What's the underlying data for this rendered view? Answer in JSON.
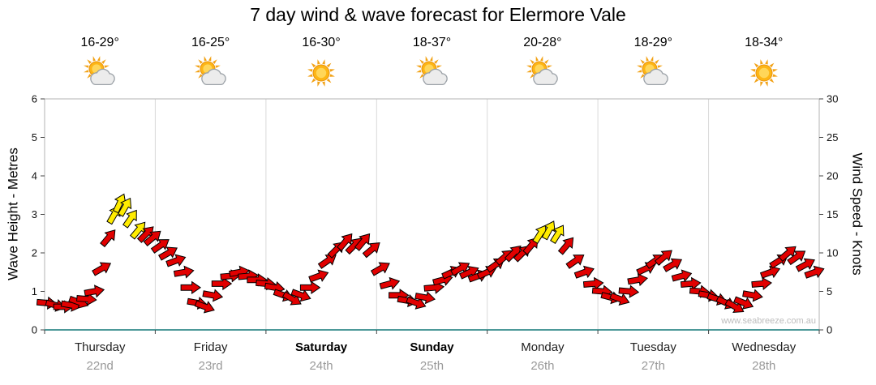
{
  "title": "7 day wind & wave forecast for Elermore Vale",
  "watermark": "www.seabreeze.com.au",
  "days": [
    {
      "name": "Thursday",
      "date": "22nd",
      "temp": "16-29°",
      "icon": "sun-cloud",
      "weekend": false
    },
    {
      "name": "Friday",
      "date": "23rd",
      "temp": "16-25°",
      "icon": "sun-cloud",
      "weekend": false
    },
    {
      "name": "Saturday",
      "date": "24th",
      "temp": "16-30°",
      "icon": "sun",
      "weekend": true
    },
    {
      "name": "Sunday",
      "date": "25th",
      "temp": "18-37°",
      "icon": "sun-cloud",
      "weekend": true
    },
    {
      "name": "Monday",
      "date": "26th",
      "temp": "20-28°",
      "icon": "sun-cloud",
      "weekend": false
    },
    {
      "name": "Tuesday",
      "date": "27th",
      "temp": "18-29°",
      "icon": "sun-cloud",
      "weekend": false
    },
    {
      "name": "Wednesday",
      "date": "28th",
      "temp": "18-34°",
      "icon": "sun",
      "weekend": false
    }
  ],
  "chart_data": {
    "type": "wind-arrow-time-series",
    "title": "7 day wind & wave forecast for Elermore Vale",
    "left_axis": {
      "label": "Wave Height - Metres",
      "min": 0,
      "max": 6,
      "ticks": [
        0,
        1,
        2,
        3,
        4,
        5,
        6
      ]
    },
    "right_axis": {
      "label": "Wind Speed - Knots",
      "min": 0,
      "max": 30,
      "ticks": [
        0,
        5,
        10,
        15,
        20,
        25,
        30
      ]
    },
    "x_axis": {
      "categories": [
        "Thursday",
        "Friday",
        "Saturday",
        "Sunday",
        "Monday",
        "Tuesday",
        "Wednesday"
      ],
      "span_days": 7
    },
    "legend": "arrows show wind speed (knots) and direction; yellow = strongest wind",
    "colors": {
      "arrow": "#e10000",
      "arrow_strong": "#ffec00",
      "outline": "#000000",
      "grid": "#d9d9d9",
      "border": "#b3b3b3",
      "baseline": "#4d9999"
    },
    "points_format": [
      "day_offset",
      "wind_knots",
      "direction_deg",
      "strong"
    ],
    "points": [
      [
        0.02,
        3.5,
        95,
        0
      ],
      [
        0.1,
        3.2,
        105,
        0
      ],
      [
        0.17,
        3.0,
        90,
        0
      ],
      [
        0.24,
        3.2,
        100,
        0
      ],
      [
        0.31,
        3.6,
        110,
        0
      ],
      [
        0.38,
        4.0,
        95,
        0
      ],
      [
        0.45,
        5.0,
        80,
        0
      ],
      [
        0.52,
        8.0,
        60,
        0
      ],
      [
        0.58,
        12.0,
        40,
        0
      ],
      [
        0.63,
        15.0,
        30,
        1
      ],
      [
        0.68,
        16.5,
        25,
        1
      ],
      [
        0.73,
        16.0,
        30,
        1
      ],
      [
        0.78,
        14.5,
        35,
        1
      ],
      [
        0.85,
        13.0,
        40,
        1
      ],
      [
        0.92,
        12.5,
        45,
        0
      ],
      [
        0.98,
        12.0,
        50,
        0
      ],
      [
        1.05,
        11.0,
        55,
        0
      ],
      [
        1.12,
        10.0,
        60,
        0
      ],
      [
        1.19,
        9.0,
        70,
        0
      ],
      [
        1.26,
        7.5,
        80,
        0
      ],
      [
        1.32,
        5.5,
        90,
        0
      ],
      [
        1.38,
        3.5,
        100,
        0
      ],
      [
        1.45,
        3.0,
        110,
        0
      ],
      [
        1.52,
        4.5,
        100,
        0
      ],
      [
        1.6,
        6.0,
        90,
        0
      ],
      [
        1.68,
        7.0,
        85,
        0
      ],
      [
        1.76,
        7.5,
        80,
        0
      ],
      [
        1.84,
        7.0,
        85,
        0
      ],
      [
        1.92,
        6.5,
        90,
        0
      ],
      [
        2.0,
        6.0,
        95,
        0
      ],
      [
        2.08,
        5.5,
        100,
        0
      ],
      [
        2.16,
        4.5,
        110,
        0
      ],
      [
        2.24,
        4.0,
        120,
        0
      ],
      [
        2.32,
        4.5,
        110,
        0
      ],
      [
        2.4,
        5.5,
        90,
        0
      ],
      [
        2.48,
        7.0,
        70,
        0
      ],
      [
        2.56,
        9.0,
        55,
        0
      ],
      [
        2.64,
        10.5,
        45,
        0
      ],
      [
        2.72,
        11.5,
        40,
        0
      ],
      [
        2.8,
        11.0,
        45,
        0
      ],
      [
        2.88,
        11.5,
        40,
        0
      ],
      [
        2.96,
        10.5,
        50,
        0
      ],
      [
        3.04,
        8.0,
        60,
        0
      ],
      [
        3.12,
        6.0,
        75,
        0
      ],
      [
        3.2,
        4.5,
        90,
        0
      ],
      [
        3.28,
        3.8,
        100,
        0
      ],
      [
        3.36,
        3.5,
        110,
        0
      ],
      [
        3.44,
        4.2,
        100,
        0
      ],
      [
        3.52,
        5.5,
        85,
        0
      ],
      [
        3.6,
        6.5,
        75,
        0
      ],
      [
        3.68,
        7.5,
        65,
        0
      ],
      [
        3.76,
        8.0,
        60,
        0
      ],
      [
        3.84,
        7.5,
        65,
        0
      ],
      [
        3.92,
        7.0,
        70,
        0
      ],
      [
        4.0,
        7.5,
        65,
        0
      ],
      [
        4.08,
        8.5,
        55,
        0
      ],
      [
        4.16,
        9.5,
        50,
        0
      ],
      [
        4.24,
        10.0,
        45,
        0
      ],
      [
        4.32,
        10.0,
        45,
        0
      ],
      [
        4.4,
        11.0,
        40,
        0
      ],
      [
        4.48,
        12.5,
        32,
        1
      ],
      [
        4.56,
        13.0,
        28,
        1
      ],
      [
        4.64,
        12.5,
        32,
        1
      ],
      [
        4.72,
        11.0,
        40,
        0
      ],
      [
        4.8,
        9.0,
        55,
        0
      ],
      [
        4.88,
        7.5,
        70,
        0
      ],
      [
        4.96,
        6.0,
        85,
        0
      ],
      [
        5.04,
        5.0,
        95,
        0
      ],
      [
        5.12,
        4.2,
        105,
        0
      ],
      [
        5.2,
        4.0,
        110,
        0
      ],
      [
        5.28,
        5.0,
        95,
        0
      ],
      [
        5.36,
        6.5,
        80,
        0
      ],
      [
        5.44,
        8.0,
        65,
        0
      ],
      [
        5.52,
        9.0,
        55,
        0
      ],
      [
        5.6,
        9.5,
        50,
        0
      ],
      [
        5.68,
        8.5,
        60,
        0
      ],
      [
        5.76,
        7.0,
        75,
        0
      ],
      [
        5.84,
        6.0,
        85,
        0
      ],
      [
        5.92,
        5.0,
        95,
        0
      ],
      [
        6.0,
        4.5,
        100,
        0
      ],
      [
        6.08,
        4.0,
        108,
        0
      ],
      [
        6.16,
        3.5,
        115,
        0
      ],
      [
        6.24,
        3.0,
        120,
        0
      ],
      [
        6.32,
        3.5,
        112,
        0
      ],
      [
        6.4,
        4.5,
        100,
        0
      ],
      [
        6.48,
        6.0,
        85,
        0
      ],
      [
        6.56,
        7.5,
        70,
        0
      ],
      [
        6.64,
        9.0,
        58,
        0
      ],
      [
        6.72,
        10.0,
        50,
        0
      ],
      [
        6.8,
        9.5,
        55,
        0
      ],
      [
        6.88,
        8.5,
        62,
        0
      ],
      [
        6.96,
        7.5,
        70,
        0
      ]
    ]
  }
}
